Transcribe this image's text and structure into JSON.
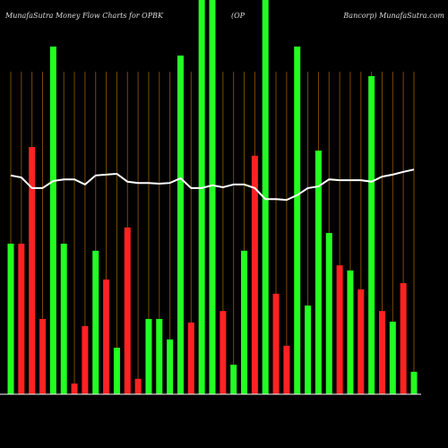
{
  "chart_data": {
    "type": "bar",
    "title": "MunafaSutra  Money Flow  Charts for OPBK",
    "title_middle": "(OP",
    "title_right": "Bancorp) MunafaSutra.com",
    "ylim": [
      0,
      100
    ],
    "grid": true,
    "grid_color": "#7a4a00",
    "bar_values": [
      38.2,
      38.2,
      62.7,
      19.1,
      88.2,
      38.2,
      2.7,
      17.3,
      36.4,
      29.1,
      11.8,
      42.3,
      3.9,
      19.1,
      19.1,
      13.9,
      85.9,
      18.2,
      100,
      100,
      21.1,
      7.5,
      36.4,
      60.5,
      100,
      25.5,
      12.3,
      88.2,
      22.5,
      61.8,
      40.9,
      32.7,
      31.4,
      26.6,
      80.7,
      21.1,
      18.4,
      28.2,
      5.7
    ],
    "bar_colors": [
      "#22ff22",
      "#ff2222",
      "#ff2222",
      "#ff2222",
      "#22ff22",
      "#22ff22",
      "#ff2222",
      "#ff2222",
      "#22ff22",
      "#ff2222",
      "#22ff22",
      "#ff2222",
      "#ff2222",
      "#22ff22",
      "#22ff22",
      "#22ff22",
      "#22ff22",
      "#ff2222",
      "#22ff22",
      "#22ff22",
      "#ff2222",
      "#22ff22",
      "#22ff22",
      "#ff2222",
      "#22ff22",
      "#ff2222",
      "#ff2222",
      "#22ff22",
      "#22ff22",
      "#22ff22",
      "#22ff22",
      "#ff2222",
      "#22ff22",
      "#ff2222",
      "#22ff22",
      "#ff2222",
      "#22ff22",
      "#ff2222",
      "#22ff22"
    ],
    "line_color": "#ffffff",
    "line_values": [
      55.5,
      55,
      52.3,
      52.3,
      54.1,
      54.5,
      54.5,
      53.2,
      55.5,
      55.7,
      55.9,
      53.9,
      53.6,
      53.6,
      53.4,
      53.6,
      54.8,
      52.3,
      52.3,
      53,
      52.5,
      53.2,
      53.2,
      52.3,
      49.5,
      49.5,
      49.3,
      50.5,
      52.3,
      52.7,
      54.5,
      54.3,
      54.3,
      54.3,
      53.9,
      55.2,
      55.7,
      56.4,
      57
    ]
  }
}
